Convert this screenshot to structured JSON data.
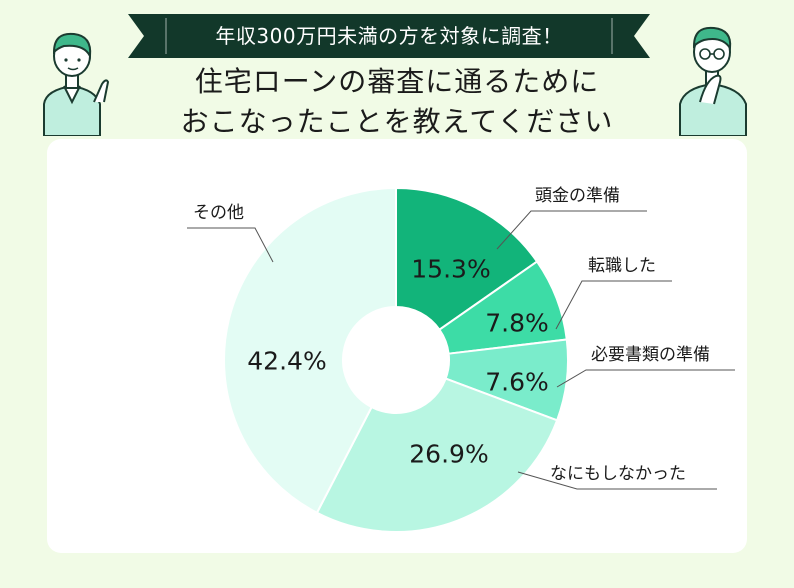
{
  "banner": {
    "text": "年収300万円未満の方を対象に調査！",
    "color": "#12382a"
  },
  "title": {
    "line1": "住宅ローンの審査に通るために",
    "line2": "おこなったことを教えてください"
  },
  "chart_data": {
    "type": "pie",
    "donut": true,
    "unit": "%",
    "slices": [
      {
        "label": "頭金の準備",
        "value": 15.3,
        "color": "#12b47a"
      },
      {
        "label": "転職した",
        "value": 7.8,
        "color": "#3ddca6"
      },
      {
        "label": "必要書類の準備",
        "value": 7.6,
        "color": "#7aeccb"
      },
      {
        "label": "なにもしなかった",
        "value": 26.9,
        "color": "#b8f6e2"
      },
      {
        "label": "その他",
        "value": 42.4,
        "color": "#e3fcf4"
      }
    ]
  }
}
